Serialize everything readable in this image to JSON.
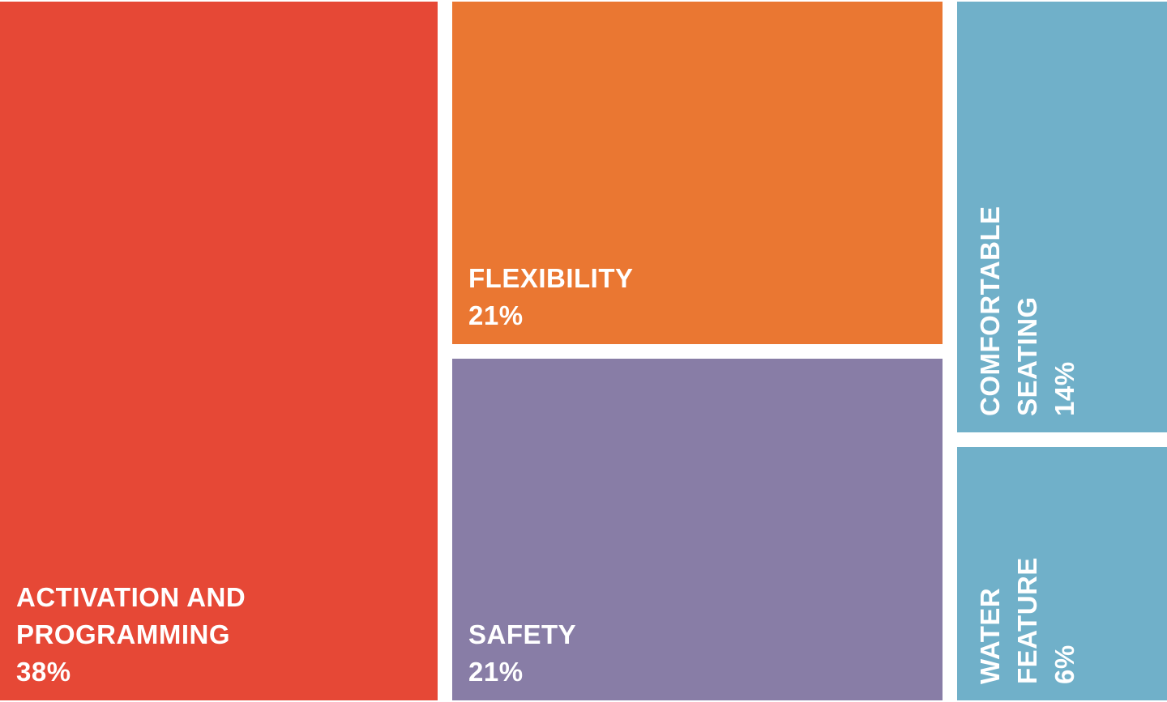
{
  "chart_data": {
    "type": "treemap",
    "title": "",
    "items": [
      {
        "label_lines": [
          "ACTIVATION AND",
          "PROGRAMMING"
        ],
        "value": 38,
        "value_label": "38%",
        "color": "#e64836"
      },
      {
        "label_lines": [
          "FLEXIBILITY"
        ],
        "value": 21,
        "value_label": "21%",
        "color": "#ea7732"
      },
      {
        "label_lines": [
          "SAFETY"
        ],
        "value": 21,
        "value_label": "21%",
        "color": "#887da6"
      },
      {
        "label_lines": [
          "COMFORTABLE",
          "SEATING"
        ],
        "value": 14,
        "value_label": "14%",
        "color": "#70b0c9"
      },
      {
        "label_lines": [
          "WATER",
          "FEATURE"
        ],
        "value": 6,
        "value_label": "6%",
        "color": "#70b0c9"
      }
    ]
  }
}
